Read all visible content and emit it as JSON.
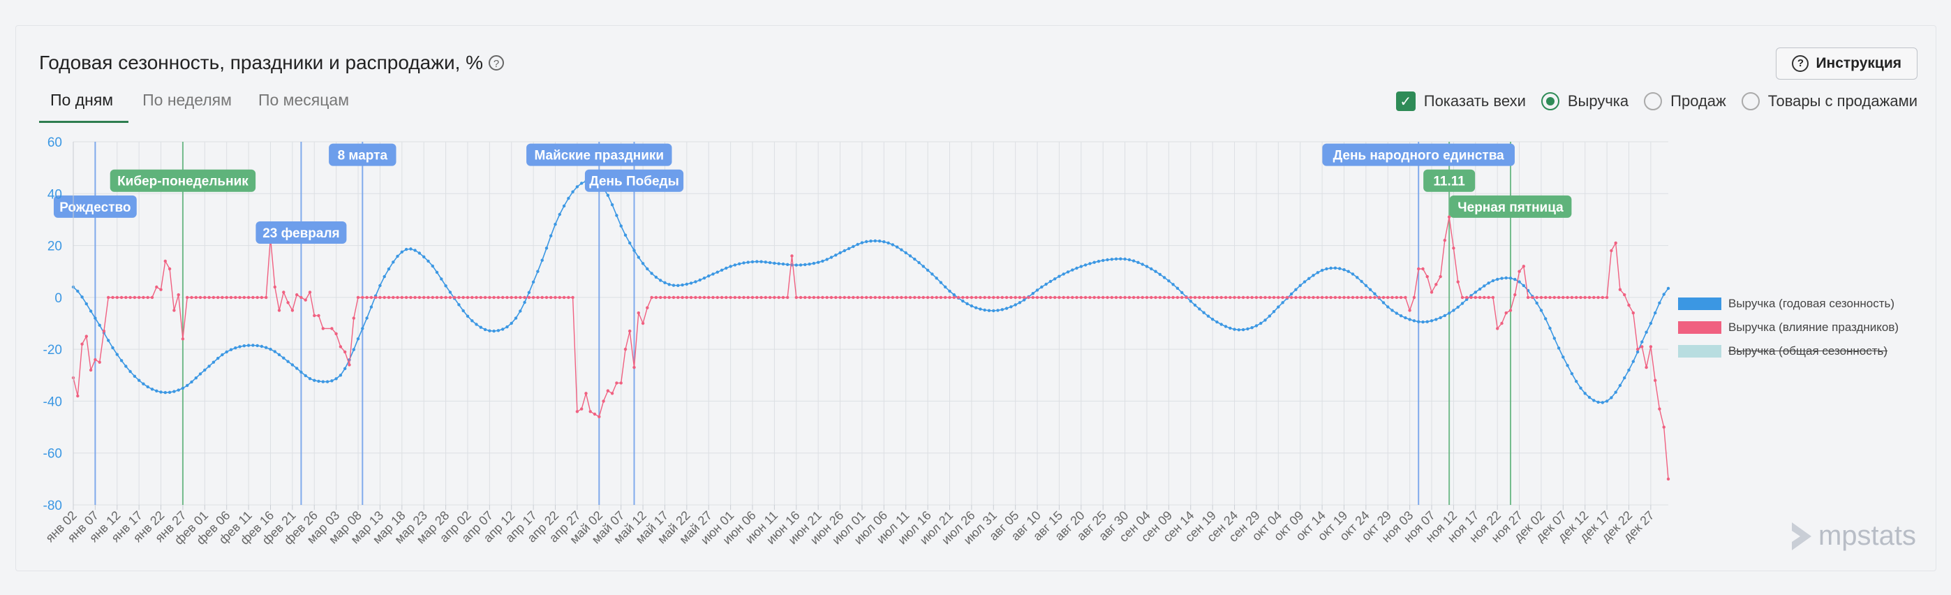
{
  "header": {
    "title": "Годовая сезонность, праздники и распродажи, %",
    "help_glyph": "?",
    "instruction_label": "Инструкция"
  },
  "tabs": [
    {
      "label": "По дням",
      "active": true
    },
    {
      "label": "По неделям",
      "active": false
    },
    {
      "label": "По месяцам",
      "active": false
    }
  ],
  "controls": {
    "show_milestones_label": "Показать вехи",
    "show_milestones_checked": true,
    "metric_options": [
      {
        "label": "Выручка",
        "selected": true
      },
      {
        "label": "Продаж",
        "selected": false
      },
      {
        "label": "Товары с продажами",
        "selected": false
      }
    ]
  },
  "logo": {
    "text": "mpstats"
  },
  "colors": {
    "seasonality": "#3b97e3",
    "holidays": "#f06080",
    "general": "#b8dde0",
    "milestone_blue": "#6d9eeb",
    "milestone_green": "#5fb37b"
  },
  "chart_data": {
    "type": "line",
    "ylim": [
      -80,
      60
    ],
    "yticks": [
      60,
      40,
      20,
      0,
      -20,
      -40,
      -60,
      -80
    ],
    "x_start": "2024-01-02",
    "x_end": "2024-12-31",
    "xtick_labels": [
      "янв 02",
      "янв 07",
      "янв 12",
      "янв 17",
      "янв 22",
      "янв 27",
      "фев 01",
      "фев 06",
      "фев 11",
      "фев 16",
      "фев 21",
      "фев 26",
      "мар 03",
      "мар 08",
      "мар 13",
      "мар 18",
      "мар 23",
      "мар 28",
      "апр 02",
      "апр 07",
      "апр 12",
      "апр 17",
      "апр 22",
      "апр 27",
      "май 02",
      "май 07",
      "май 12",
      "май 17",
      "май 22",
      "май 27",
      "июн 01",
      "июн 06",
      "июн 11",
      "июн 16",
      "июн 21",
      "июн 26",
      "июл 01",
      "июл 06",
      "июл 11",
      "июл 16",
      "июл 21",
      "июл 26",
      "июл 31",
      "авг 05",
      "авг 10",
      "авг 15",
      "авг 20",
      "авг 25",
      "авг 30",
      "сен 04",
      "сен 09",
      "сен 14",
      "сен 19",
      "сен 24",
      "сен 29",
      "окт 04",
      "окт 09",
      "окт 14",
      "окт 19",
      "окт 24",
      "окт 29",
      "ноя 03",
      "ноя 07",
      "ноя 12",
      "ноя 17",
      "ноя 22",
      "ноя 27",
      "дек 02",
      "дек 07",
      "дек 12",
      "дек 17",
      "дек 22",
      "дек 27"
    ],
    "series": [
      {
        "name": "Выручка (годовая сезонность)",
        "color": "#3b97e3",
        "dashed": true,
        "points": [
          [
            "01-02",
            4
          ],
          [
            "01-07",
            -8
          ],
          [
            "01-12",
            -22
          ],
          [
            "01-17",
            -32
          ],
          [
            "01-22",
            -36.5
          ],
          [
            "01-27",
            -35
          ],
          [
            "02-01",
            -28
          ],
          [
            "02-06",
            -21
          ],
          [
            "02-11",
            -18.5
          ],
          [
            "02-16",
            -20
          ],
          [
            "02-21",
            -26
          ],
          [
            "02-26",
            -32
          ],
          [
            "03-03",
            -30
          ],
          [
            "03-08",
            -12
          ],
          [
            "03-13",
            8
          ],
          [
            "03-18",
            18.5
          ],
          [
            "03-23",
            14
          ],
          [
            "03-28",
            2
          ],
          [
            "04-02",
            -9
          ],
          [
            "04-07",
            -13
          ],
          [
            "04-12",
            -8
          ],
          [
            "04-17",
            10
          ],
          [
            "04-22",
            32
          ],
          [
            "04-27",
            44
          ],
          [
            "05-02",
            42
          ],
          [
            "05-07",
            24
          ],
          [
            "05-12",
            11
          ],
          [
            "05-17",
            5
          ],
          [
            "05-22",
            5.5
          ],
          [
            "05-27",
            9
          ],
          [
            "06-01",
            12.5
          ],
          [
            "06-06",
            13.8
          ],
          [
            "06-11",
            13
          ],
          [
            "06-16",
            12.5
          ],
          [
            "06-21",
            14
          ],
          [
            "06-26",
            18
          ],
          [
            "07-01",
            21.5
          ],
          [
            "07-06",
            21
          ],
          [
            "07-11",
            16
          ],
          [
            "07-16",
            9
          ],
          [
            "07-21",
            1
          ],
          [
            "07-26",
            -4
          ],
          [
            "07-31",
            -5
          ],
          [
            "08-05",
            -2
          ],
          [
            "08-10",
            4
          ],
          [
            "08-15",
            9
          ],
          [
            "08-20",
            12.5
          ],
          [
            "08-25",
            14.5
          ],
          [
            "08-30",
            14.5
          ],
          [
            "09-04",
            11
          ],
          [
            "09-09",
            5
          ],
          [
            "09-14",
            -3
          ],
          [
            "09-19",
            -9.5
          ],
          [
            "09-24",
            -12.5
          ],
          [
            "09-29",
            -10
          ],
          [
            "10-04",
            -2
          ],
          [
            "10-09",
            6
          ],
          [
            "10-14",
            11
          ],
          [
            "10-19",
            10
          ],
          [
            "10-24",
            3
          ],
          [
            "10-29",
            -5
          ],
          [
            "11-03",
            -9
          ],
          [
            "11-07",
            -9
          ],
          [
            "11-12",
            -5
          ],
          [
            "11-17",
            2
          ],
          [
            "11-22",
            7
          ],
          [
            "11-27",
            6
          ],
          [
            "12-02",
            -5
          ],
          [
            "12-07",
            -23
          ],
          [
            "12-12",
            -37
          ],
          [
            "12-17",
            -40
          ],
          [
            "12-22",
            -28
          ],
          [
            "12-27",
            -10
          ],
          [
            "12-31",
            3.5
          ]
        ]
      },
      {
        "name": "Выручка (влияние праздников)",
        "color": "#f06080",
        "dashed": false,
        "points": [
          [
            "01-02",
            -31
          ],
          [
            "01-03",
            -38
          ],
          [
            "01-04",
            -18
          ],
          [
            "01-05",
            -15
          ],
          [
            "01-06",
            -28
          ],
          [
            "01-07",
            -24
          ],
          [
            "01-08",
            -25
          ],
          [
            "01-09",
            -13
          ],
          [
            "01-10",
            0
          ],
          [
            "01-19",
            0
          ],
          [
            "01-20",
            0
          ],
          [
            "01-21",
            4
          ],
          [
            "01-22",
            3
          ],
          [
            "01-23",
            14
          ],
          [
            "01-24",
            11
          ],
          [
            "01-25",
            -5
          ],
          [
            "01-26",
            1
          ],
          [
            "01-27",
            -16
          ],
          [
            "01-28",
            0
          ],
          [
            "02-15",
            0
          ],
          [
            "02-16",
            23
          ],
          [
            "02-17",
            4
          ],
          [
            "02-18",
            -5
          ],
          [
            "02-19",
            2
          ],
          [
            "02-20",
            -2
          ],
          [
            "02-21",
            -5
          ],
          [
            "02-22",
            1
          ],
          [
            "02-23",
            0
          ],
          [
            "02-24",
            -1
          ],
          [
            "02-25",
            2
          ],
          [
            "02-26",
            -7
          ],
          [
            "02-27",
            -7
          ],
          [
            "02-28",
            -12
          ],
          [
            "03-01",
            -12
          ],
          [
            "03-02",
            -14
          ],
          [
            "03-03",
            -19
          ],
          [
            "03-04",
            -21
          ],
          [
            "03-05",
            -26
          ],
          [
            "03-06",
            -8
          ],
          [
            "03-07",
            0
          ],
          [
            "04-25",
            0
          ],
          [
            "04-26",
            -44
          ],
          [
            "04-27",
            -43
          ],
          [
            "04-28",
            -37
          ],
          [
            "04-29",
            -44
          ],
          [
            "04-30",
            -45
          ],
          [
            "05-01",
            -46
          ],
          [
            "05-02",
            -40
          ],
          [
            "05-03",
            -36
          ],
          [
            "05-04",
            -37
          ],
          [
            "05-05",
            -33
          ],
          [
            "05-06",
            -33
          ],
          [
            "05-07",
            -20
          ],
          [
            "05-08",
            -13
          ],
          [
            "05-09",
            -27
          ],
          [
            "05-10",
            -6
          ],
          [
            "05-11",
            -10
          ],
          [
            "05-12",
            -4
          ],
          [
            "05-13",
            0
          ],
          [
            "06-13",
            0
          ],
          [
            "06-14",
            16
          ],
          [
            "06-15",
            0
          ],
          [
            "11-01",
            0
          ],
          [
            "11-02",
            -5
          ],
          [
            "11-03",
            0
          ],
          [
            "11-04",
            11
          ],
          [
            "11-05",
            11
          ],
          [
            "11-06",
            8
          ],
          [
            "11-07",
            2
          ],
          [
            "11-08",
            5
          ],
          [
            "11-09",
            8
          ],
          [
            "11-10",
            22
          ],
          [
            "11-11",
            31
          ],
          [
            "11-12",
            19
          ],
          [
            "11-13",
            6
          ],
          [
            "11-14",
            0
          ],
          [
            "11-21",
            0
          ],
          [
            "11-22",
            -12
          ],
          [
            "11-23",
            -10
          ],
          [
            "11-24",
            -6
          ],
          [
            "11-25",
            -5
          ],
          [
            "11-26",
            1
          ],
          [
            "11-27",
            10
          ],
          [
            "11-28",
            12
          ],
          [
            "11-29",
            0
          ],
          [
            "12-17",
            0
          ],
          [
            "12-18",
            18
          ],
          [
            "12-19",
            21
          ],
          [
            "12-20",
            3
          ],
          [
            "12-21",
            1
          ],
          [
            "12-22",
            -3
          ],
          [
            "12-23",
            -6
          ],
          [
            "12-24",
            -20
          ],
          [
            "12-25",
            -19
          ],
          [
            "12-26",
            -27
          ],
          [
            "12-27",
            -19
          ],
          [
            "12-28",
            -32
          ],
          [
            "12-29",
            -43
          ],
          [
            "12-30",
            -50
          ],
          [
            "12-31",
            -70
          ]
        ]
      }
    ],
    "milestones": [
      {
        "label": "Рождество",
        "date": "01-07",
        "color": "blue",
        "label_y": 35
      },
      {
        "label": "Кибер-понедельник",
        "date": "01-27",
        "color": "green",
        "label_y": 45
      },
      {
        "label": "23 февраля",
        "date": "02-23",
        "color": "blue",
        "label_y": 25
      },
      {
        "label": "8 марта",
        "date": "03-08",
        "color": "blue",
        "label_y": 55
      },
      {
        "label": "Майские праздники",
        "date": "05-01",
        "color": "blue",
        "label_y": 55
      },
      {
        "label": "День Победы",
        "date": "05-09",
        "color": "blue",
        "label_y": 45
      },
      {
        "label": "День народного единства",
        "date": "11-04",
        "color": "blue",
        "label_y": 55
      },
      {
        "label": "11.11",
        "date": "11-11",
        "color": "green",
        "label_y": 45
      },
      {
        "label": "Черная пятница",
        "date": "11-25",
        "color": "green",
        "label_y": 35
      }
    ],
    "legend": {
      "placement": "right",
      "entries": [
        {
          "label": "Выручка (годовая сезонность)",
          "color": "#3b97e3",
          "hidden": false
        },
        {
          "label": "Выручка (влияние праздников)",
          "color": "#f06080",
          "hidden": false
        },
        {
          "label": "Выручка (общая сезонность)",
          "color": "#b8dde0",
          "hidden": true
        }
      ]
    }
  }
}
